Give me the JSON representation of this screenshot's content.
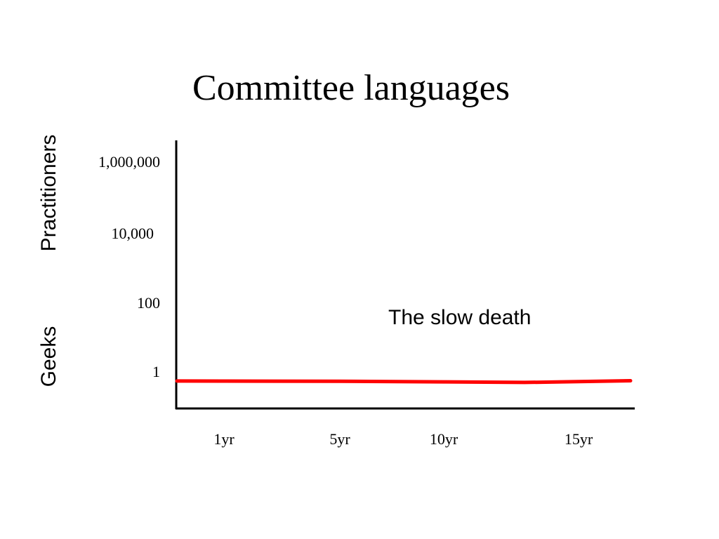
{
  "slide": {
    "title": "Committee languages"
  },
  "chart_data": {
    "type": "line",
    "title": "Committee languages",
    "xlabel": "",
    "ylabel_top": "Practitioners",
    "ylabel_bottom": "Geeks",
    "y_scale": "log",
    "y_ticks": [
      {
        "value": 1000000,
        "label": "1,000,000"
      },
      {
        "value": 10000,
        "label": "10,000"
      },
      {
        "value": 100,
        "label": "100"
      },
      {
        "value": 1,
        "label": "1"
      }
    ],
    "x_ticks": [
      {
        "value": 1,
        "label": "1yr"
      },
      {
        "value": 5,
        "label": "5yr"
      },
      {
        "value": 10,
        "label": "10yr"
      },
      {
        "value": 15,
        "label": "15yr"
      }
    ],
    "annotation": "The slow death",
    "series": [
      {
        "color": "#ff0000",
        "x": [
          0,
          5,
          10,
          13,
          17
        ],
        "y": [
          0.55,
          0.54,
          0.52,
          0.5,
          0.56
        ]
      }
    ],
    "grid": false,
    "legend": "none"
  }
}
